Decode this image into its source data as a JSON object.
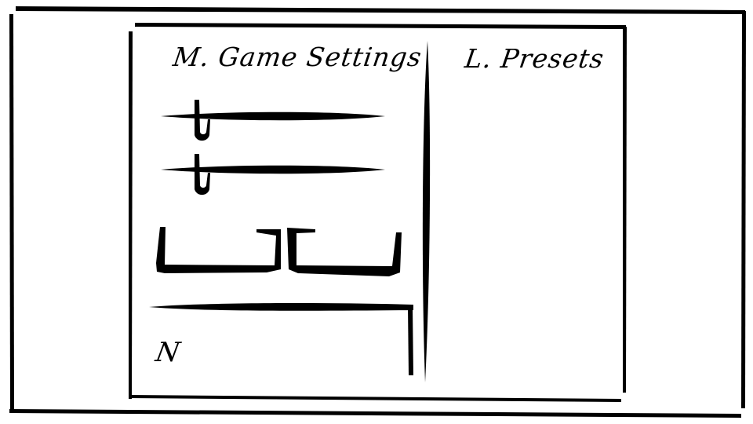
{
  "window": {
    "settings_title": "M. Game Settings",
    "presets_title": "L. Presets"
  },
  "settings": {
    "sliders": [
      {
        "name": "slider-1",
        "value": 0.17
      },
      {
        "name": "slider-2",
        "value": 0.17
      }
    ],
    "footer_label": "N"
  },
  "colors": {
    "ink": "#000000",
    "paper": "#ffffff"
  }
}
